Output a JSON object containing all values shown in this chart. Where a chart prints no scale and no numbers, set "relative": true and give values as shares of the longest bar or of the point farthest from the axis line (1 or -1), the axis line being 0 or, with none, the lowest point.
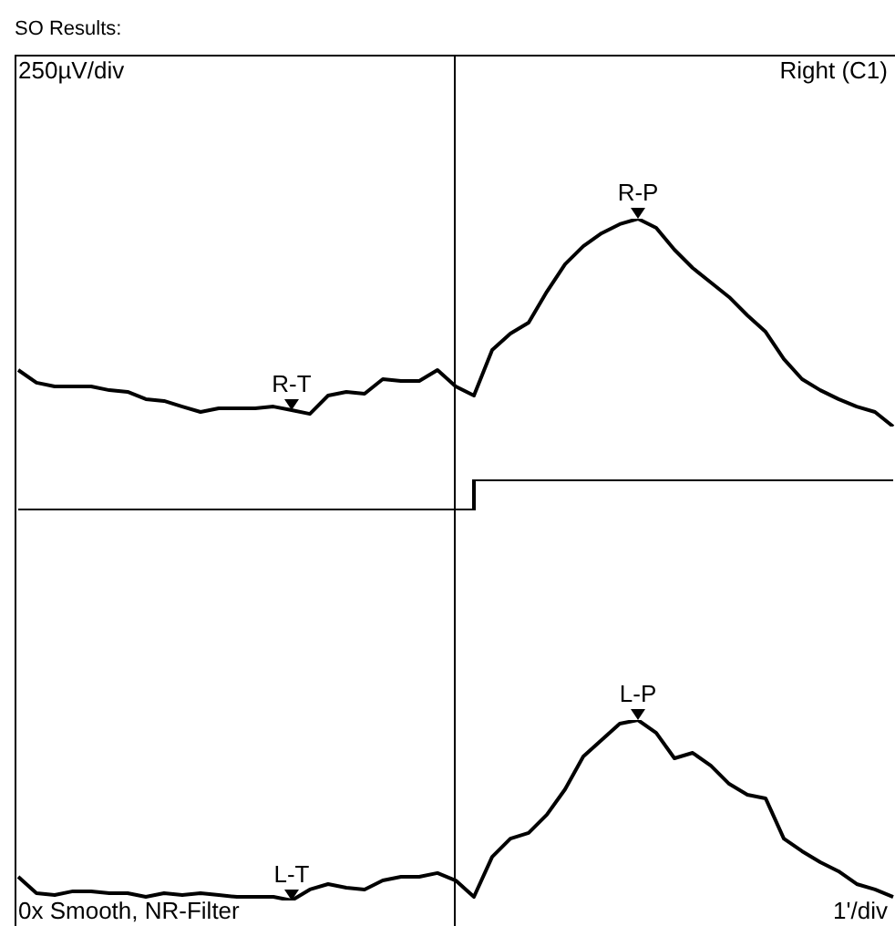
{
  "chart_data": [
    {
      "type": "line",
      "relative": true,
      "title": "SO Results:",
      "tick_labels": false,
      "annotations": [
        "250µV/div",
        "Right (C1)",
        {
          "text": "R-T",
          "y": 0.079
        },
        {
          "text": "R-P",
          "y": 1
        }
      ],
      "categories": [
        null,
        null,
        null,
        null,
        null,
        null,
        null,
        null,
        null,
        null,
        null,
        null,
        null,
        null,
        null,
        null,
        null,
        null,
        null,
        null,
        null,
        null,
        null,
        null,
        null,
        null,
        null,
        null,
        null,
        null,
        null,
        null,
        null,
        null,
        null,
        null,
        null,
        null,
        null,
        null,
        null,
        null,
        null,
        null,
        null,
        null,
        null,
        null,
        null
      ],
      "series": [
        {
          "color": "#000000",
          "values": [
            0.272,
            0.211,
            0.193,
            0.193,
            0.193,
            0.175,
            0.167,
            0.132,
            0.123,
            0.096,
            0.07,
            0.088,
            0.088,
            0.088,
            0.096,
            0.079,
            0.061,
            0.149,
            0.167,
            0.158,
            0.228,
            0.219,
            0.219,
            0.272,
            0.193,
            0.149,
            0.368,
            0.447,
            0.5,
            0.649,
            0.781,
            0.868,
            0.93,
            0.974,
            1,
            0.956,
            0.851,
            0.763,
            0.693,
            0.623,
            0.535,
            0.456,
            0.325,
            0.228,
            0.175,
            0.132,
            0.096,
            0.07,
            0
          ]
        }
      ]
    },
    {
      "type": "step",
      "relative": true,
      "tick_labels": false,
      "categories": [
        null,
        null,
        null,
        null,
        null,
        null,
        null,
        null,
        null,
        null,
        null,
        null,
        null,
        null,
        null,
        null,
        null,
        null,
        null,
        null,
        null,
        null,
        null,
        null,
        null,
        null,
        null,
        null,
        null,
        null,
        null,
        null,
        null,
        null,
        null,
        null,
        null,
        null,
        null,
        null,
        null,
        null,
        null,
        null,
        null,
        null,
        null,
        null,
        null
      ],
      "series": [
        {
          "color": "#000000",
          "values": [
            0,
            0,
            0,
            0,
            0,
            0,
            0,
            0,
            0,
            0,
            0,
            0,
            0,
            0,
            0,
            0,
            0,
            0,
            0,
            0,
            0,
            0,
            0,
            0,
            0,
            1,
            1,
            1,
            1,
            1,
            1,
            1,
            1,
            1,
            1,
            1,
            1,
            1,
            1,
            1,
            1,
            1,
            1,
            1,
            1,
            1,
            1,
            1,
            1
          ]
        }
      ]
    },
    {
      "type": "line",
      "relative": true,
      "tick_labels": false,
      "annotations": [
        "0x Smooth, NR-Filter",
        "1'/div",
        {
          "text": "L-T",
          "y": 0
        },
        {
          "text": "L-P",
          "y": 1
        }
      ],
      "categories": [
        null,
        null,
        null,
        null,
        null,
        null,
        null,
        null,
        null,
        null,
        null,
        null,
        null,
        null,
        null,
        null,
        null,
        null,
        null,
        null,
        null,
        null,
        null,
        null,
        null,
        null,
        null,
        null,
        null,
        null,
        null,
        null,
        null,
        null,
        null,
        null,
        null,
        null,
        null,
        null,
        null,
        null,
        null,
        null,
        null,
        null,
        null,
        null,
        null
      ],
      "series": [
        {
          "color": "#000000",
          "values": [
            0.131,
            0.04,
            0.03,
            0.051,
            0.051,
            0.04,
            0.04,
            0.02,
            0.04,
            0.03,
            0.04,
            0.03,
            0.02,
            0.02,
            0.02,
            0,
            0.061,
            0.091,
            0.071,
            0.061,
            0.111,
            0.131,
            0.131,
            0.152,
            0.111,
            0.02,
            0.242,
            0.343,
            0.374,
            0.475,
            0.616,
            0.798,
            0.889,
            0.98,
            1,
            0.929,
            0.788,
            0.818,
            0.747,
            0.646,
            0.586,
            0.566,
            0.343,
            0.273,
            0.212,
            0.162,
            0.091,
            0.061,
            0.02
          ]
        }
      ]
    }
  ]
}
